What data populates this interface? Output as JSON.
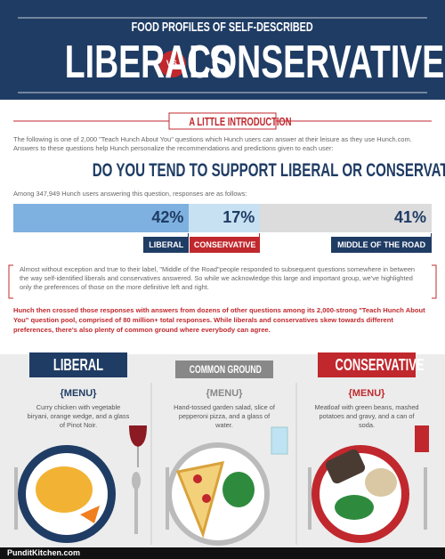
{
  "header": {
    "kicker": "FOOD PROFILES OF SELF-DESCRIBED",
    "left": "LIBERALS",
    "vs": "VS.",
    "right": "CONSERVATIVES"
  },
  "intro": {
    "heading": "A LITTLE INTRODUCTION",
    "text": "The following is one of 2,000 \"Teach Hunch About You\" questions which Hunch users can answer at their leisure as they use Hunch.com. Answers to these questions help Hunch personalize the recommendations and predictions given to each user:"
  },
  "question": "DO YOU TEND TO SUPPORT LIBERAL OR CONSERVATIVE POLITICIANS?",
  "sample": "Among 347,949 Hunch users answering this question, responses are as follows:",
  "poll": {
    "segments": [
      {
        "name": "LIBERAL",
        "value": 42,
        "label": "42%"
      },
      {
        "name": "CONSERVATIVE",
        "value": 17,
        "label": "17%"
      },
      {
        "name": "MIDDLE OF THE ROAD",
        "value": 41,
        "label": "41%"
      }
    ]
  },
  "note": "Almost without exception and true to their label, \"Middle of the Road\"people responded to subsequent questions somewhere in between the way self-identified liberals and conservatives answered. So while we acknowledge this large and important group, we've highlighted only the preferences of those on the more definitive left and right.",
  "summary": "Hunch then crossed those responses with answers from dozens of other questions among its 2,000-strong \"Teach Hunch About You\" question pool, comprised of 80 million+ total responses. While liberals and conservatives skew towards different preferences, there's also plenty of common ground where everybody can agree.",
  "menus": [
    {
      "title": "LIBERAL",
      "menu": "{MENU}",
      "text": "Curry chicken with vegetable biryani, orange wedge, and a glass of Pinot Noir."
    },
    {
      "title": "COMMON GROUND",
      "menu": "{MENU}",
      "text": "Hand-tossed garden salad, slice of pepperoni pizza, and a glass of water."
    },
    {
      "title": "CONSERVATIVE",
      "menu": "{MENU}",
      "text": "Meatloaf with green beans, mashed potatoes and gravy, and a can of soda."
    }
  ],
  "footer": "PunditKitchen.com"
}
